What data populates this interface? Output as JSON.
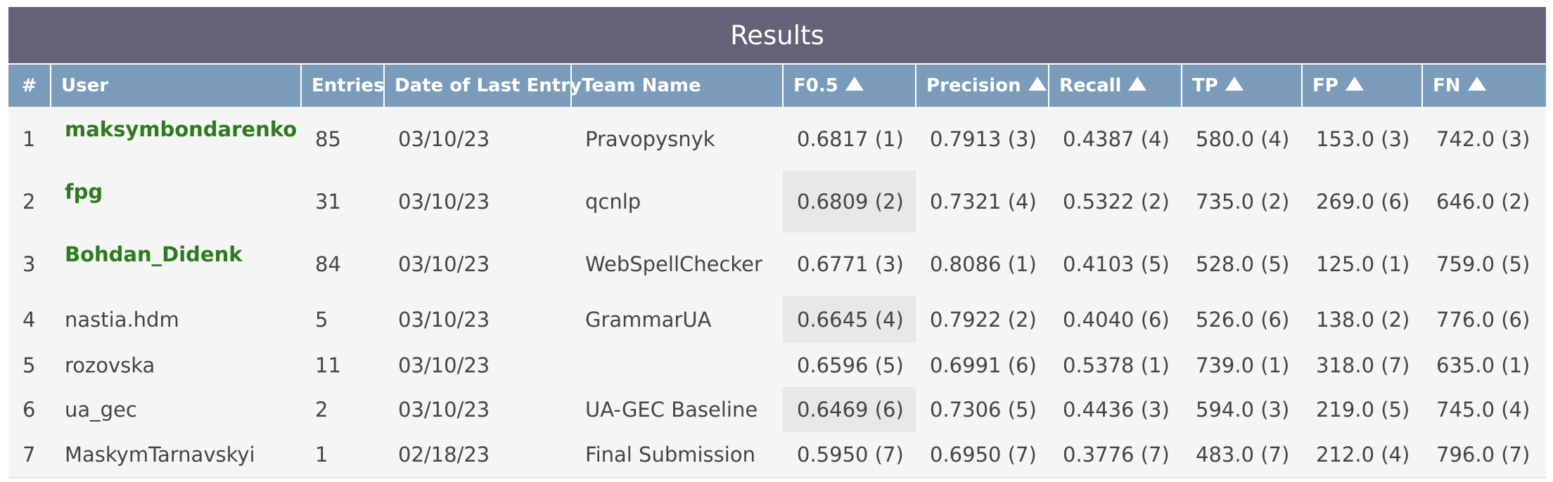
{
  "title": "Results",
  "columns": [
    {
      "key": "rank",
      "label": "#",
      "sortable": false
    },
    {
      "key": "user",
      "label": "User",
      "sortable": false
    },
    {
      "key": "entries",
      "label": "Entries",
      "sortable": false
    },
    {
      "key": "date",
      "label": "Date of Last Entry",
      "sortable": false
    },
    {
      "key": "team",
      "label": "Team Name",
      "sortable": false
    },
    {
      "key": "f05",
      "label": "F0.5",
      "sortable": true
    },
    {
      "key": "precision",
      "label": "Precision",
      "sortable": true
    },
    {
      "key": "recall",
      "label": "Recall",
      "sortable": true
    },
    {
      "key": "tp",
      "label": "TP",
      "sortable": true
    },
    {
      "key": "fp",
      "label": "FP",
      "sortable": true
    },
    {
      "key": "fn",
      "label": "FN",
      "sortable": true
    }
  ],
  "rows": [
    {
      "rank": "1",
      "user": "maksymbondarenko",
      "user_link": true,
      "entries": "85",
      "date": "03/10/23",
      "team": "Pravopysnyk",
      "f05": "0.6817 (1)",
      "precision": "0.7913 (3)",
      "recall": "0.4387 (4)",
      "tp": "580.0 (4)",
      "fp": "153.0 (3)",
      "fn": "742.0 (3)",
      "f05_highlight": false
    },
    {
      "rank": "2",
      "user": "fpg",
      "user_link": true,
      "entries": "31",
      "date": "03/10/23",
      "team": "qcnlp",
      "f05": "0.6809 (2)",
      "precision": "0.7321 (4)",
      "recall": "0.5322 (2)",
      "tp": "735.0 (2)",
      "fp": "269.0 (6)",
      "fn": "646.0 (2)",
      "f05_highlight": true
    },
    {
      "rank": "3",
      "user": "Bohdan_Didenk",
      "user_link": true,
      "entries": "84",
      "date": "03/10/23",
      "team": "WebSpellChecker",
      "f05": "0.6771 (3)",
      "precision": "0.8086 (1)",
      "recall": "0.4103 (5)",
      "tp": "528.0 (5)",
      "fp": "125.0 (1)",
      "fn": "759.0 (5)",
      "f05_highlight": false
    },
    {
      "rank": "4",
      "user": "nastia.hdm",
      "user_link": false,
      "entries": "5",
      "date": "03/10/23",
      "team": "GrammarUA",
      "f05": "0.6645 (4)",
      "precision": "0.7922 (2)",
      "recall": "0.4040 (6)",
      "tp": "526.0 (6)",
      "fp": "138.0 (2)",
      "fn": "776.0 (6)",
      "f05_highlight": true
    },
    {
      "rank": "5",
      "user": "rozovska",
      "user_link": false,
      "entries": "11",
      "date": "03/10/23",
      "team": "",
      "f05": "0.6596 (5)",
      "precision": "0.6991 (6)",
      "recall": "0.5378 (1)",
      "tp": "739.0 (1)",
      "fp": "318.0 (7)",
      "fn": "635.0 (1)",
      "f05_highlight": false
    },
    {
      "rank": "6",
      "user": "ua_gec",
      "user_link": false,
      "entries": "2",
      "date": "03/10/23",
      "team": "UA-GEC Baseline",
      "f05": "0.6469 (6)",
      "precision": "0.7306 (5)",
      "recall": "0.4436 (3)",
      "tp": "594.0 (3)",
      "fp": "219.0 (5)",
      "fn": "745.0 (4)",
      "f05_highlight": true
    },
    {
      "rank": "7",
      "user": "MaskymTarnavskyi",
      "user_link": false,
      "entries": "1",
      "date": "02/18/23",
      "team": "Final Submission",
      "f05": "0.5950 (7)",
      "precision": "0.6950 (7)",
      "recall": "0.3776 (7)",
      "tp": "483.0 (7)",
      "fp": "212.0 (4)",
      "fn": "796.0 (7)",
      "f05_highlight": false
    }
  ],
  "colors": {
    "title_bg": "#666176",
    "header_bg": "#7b9bbb",
    "link": "#2e7a1e",
    "highlight": "#e8e8e8"
  },
  "icons": {
    "sort": "triangle-up-icon"
  }
}
